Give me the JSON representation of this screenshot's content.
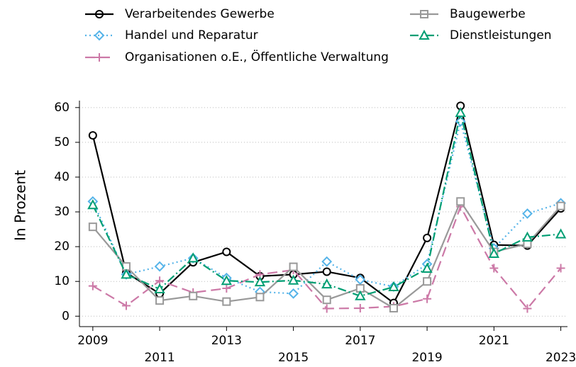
{
  "chart_data": {
    "type": "line",
    "y_label": "In Prozent",
    "x": [
      2009,
      2010,
      2011,
      2012,
      2013,
      2014,
      2015,
      2016,
      2017,
      2018,
      2019,
      2020,
      2021,
      2022,
      2023
    ],
    "series": [
      {
        "name": "Verarbeitendes Gewerbe",
        "color": "#000000",
        "marker": "circle",
        "dash": "solid",
        "values": [
          52,
          12.5,
          6.5,
          15.5,
          18.5,
          11.5,
          12,
          12.8,
          11,
          3.8,
          22.5,
          60.5,
          20.5,
          20.3,
          31
        ]
      },
      {
        "name": "Handel und Reparatur",
        "color": "#56b4e9",
        "marker": "diamond",
        "dash": "dot",
        "values": [
          33,
          12,
          14.3,
          16.7,
          11,
          7,
          6.5,
          15.7,
          10.5,
          8.5,
          15,
          56,
          19.5,
          29.5,
          32.5
        ]
      },
      {
        "name": "Organisationen o.E., Öffentliche Verwaltung",
        "color": "#cc79a7",
        "marker": "plus",
        "dash": "dash",
        "values": [
          8.7,
          3,
          10.2,
          6.8,
          8,
          12,
          13.3,
          2.2,
          2.3,
          2.8,
          5,
          31.5,
          13.8,
          2.2,
          13.8
        ]
      },
      {
        "name": "Baugewerbe",
        "color": "#999999",
        "marker": "square",
        "dash": "solid",
        "values": [
          25.7,
          14.3,
          4.5,
          5.8,
          4.2,
          5.5,
          14.2,
          4.7,
          8,
          2.3,
          10,
          33,
          18.5,
          20.8,
          31.7
        ]
      },
      {
        "name": "Dienstleistungen",
        "color": "#009e73",
        "marker": "triangle",
        "dash": "dashdot",
        "values": [
          32,
          12,
          7.8,
          16.7,
          10.2,
          9.8,
          10.3,
          9.2,
          5.8,
          8.4,
          13.7,
          58.5,
          18,
          22.7,
          23.6
        ]
      }
    ],
    "xlim": [
      2008.6,
      2023.2
    ],
    "xticks": [
      2009,
      2011,
      2013,
      2015,
      2017,
      2019,
      2021,
      2023
    ],
    "ylim": [
      -3,
      62
    ],
    "yticks": [
      0,
      10,
      20,
      30,
      40,
      50,
      60
    ],
    "grid": true
  }
}
